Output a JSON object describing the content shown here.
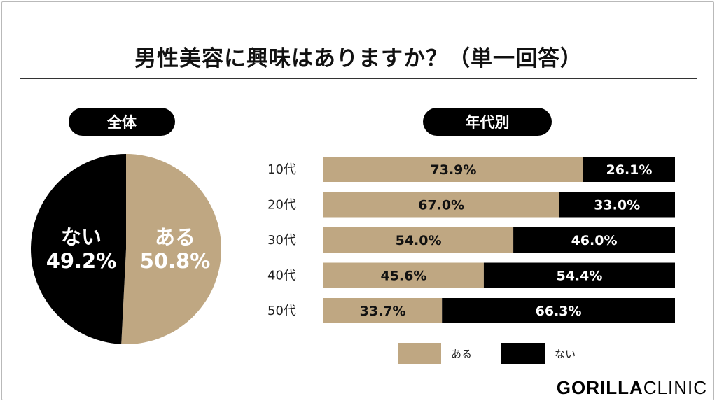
{
  "title": "男性美容に興味はありますか？（単一回答）",
  "overall": {
    "heading": "全体",
    "yes_label": "ある",
    "yes_value": "50.8%",
    "no_label": "ない",
    "no_value": "49.2%"
  },
  "by_age": {
    "heading": "年代別"
  },
  "legend": {
    "yes": "ある",
    "no": "ない"
  },
  "brand": {
    "bold": "GORILLA",
    "thin": "CLINIC"
  },
  "colors": {
    "yes": "#bfa782",
    "no": "#000000"
  },
  "chart_data": [
    {
      "type": "pie",
      "title": "全体",
      "categories": [
        "ある",
        "ない"
      ],
      "values": [
        50.8,
        49.2
      ],
      "unit": "%"
    },
    {
      "type": "bar",
      "orientation": "horizontal",
      "stacked": true,
      "title": "年代別",
      "categories": [
        "10代",
        "20代",
        "30代",
        "40代",
        "50代"
      ],
      "series": [
        {
          "name": "ある",
          "values": [
            73.9,
            67.0,
            54.0,
            45.6,
            33.7
          ]
        },
        {
          "name": "ない",
          "values": [
            26.1,
            33.0,
            46.0,
            54.4,
            66.3
          ]
        }
      ],
      "xlim": [
        0,
        100
      ],
      "unit": "%",
      "legend": "bottom"
    }
  ]
}
